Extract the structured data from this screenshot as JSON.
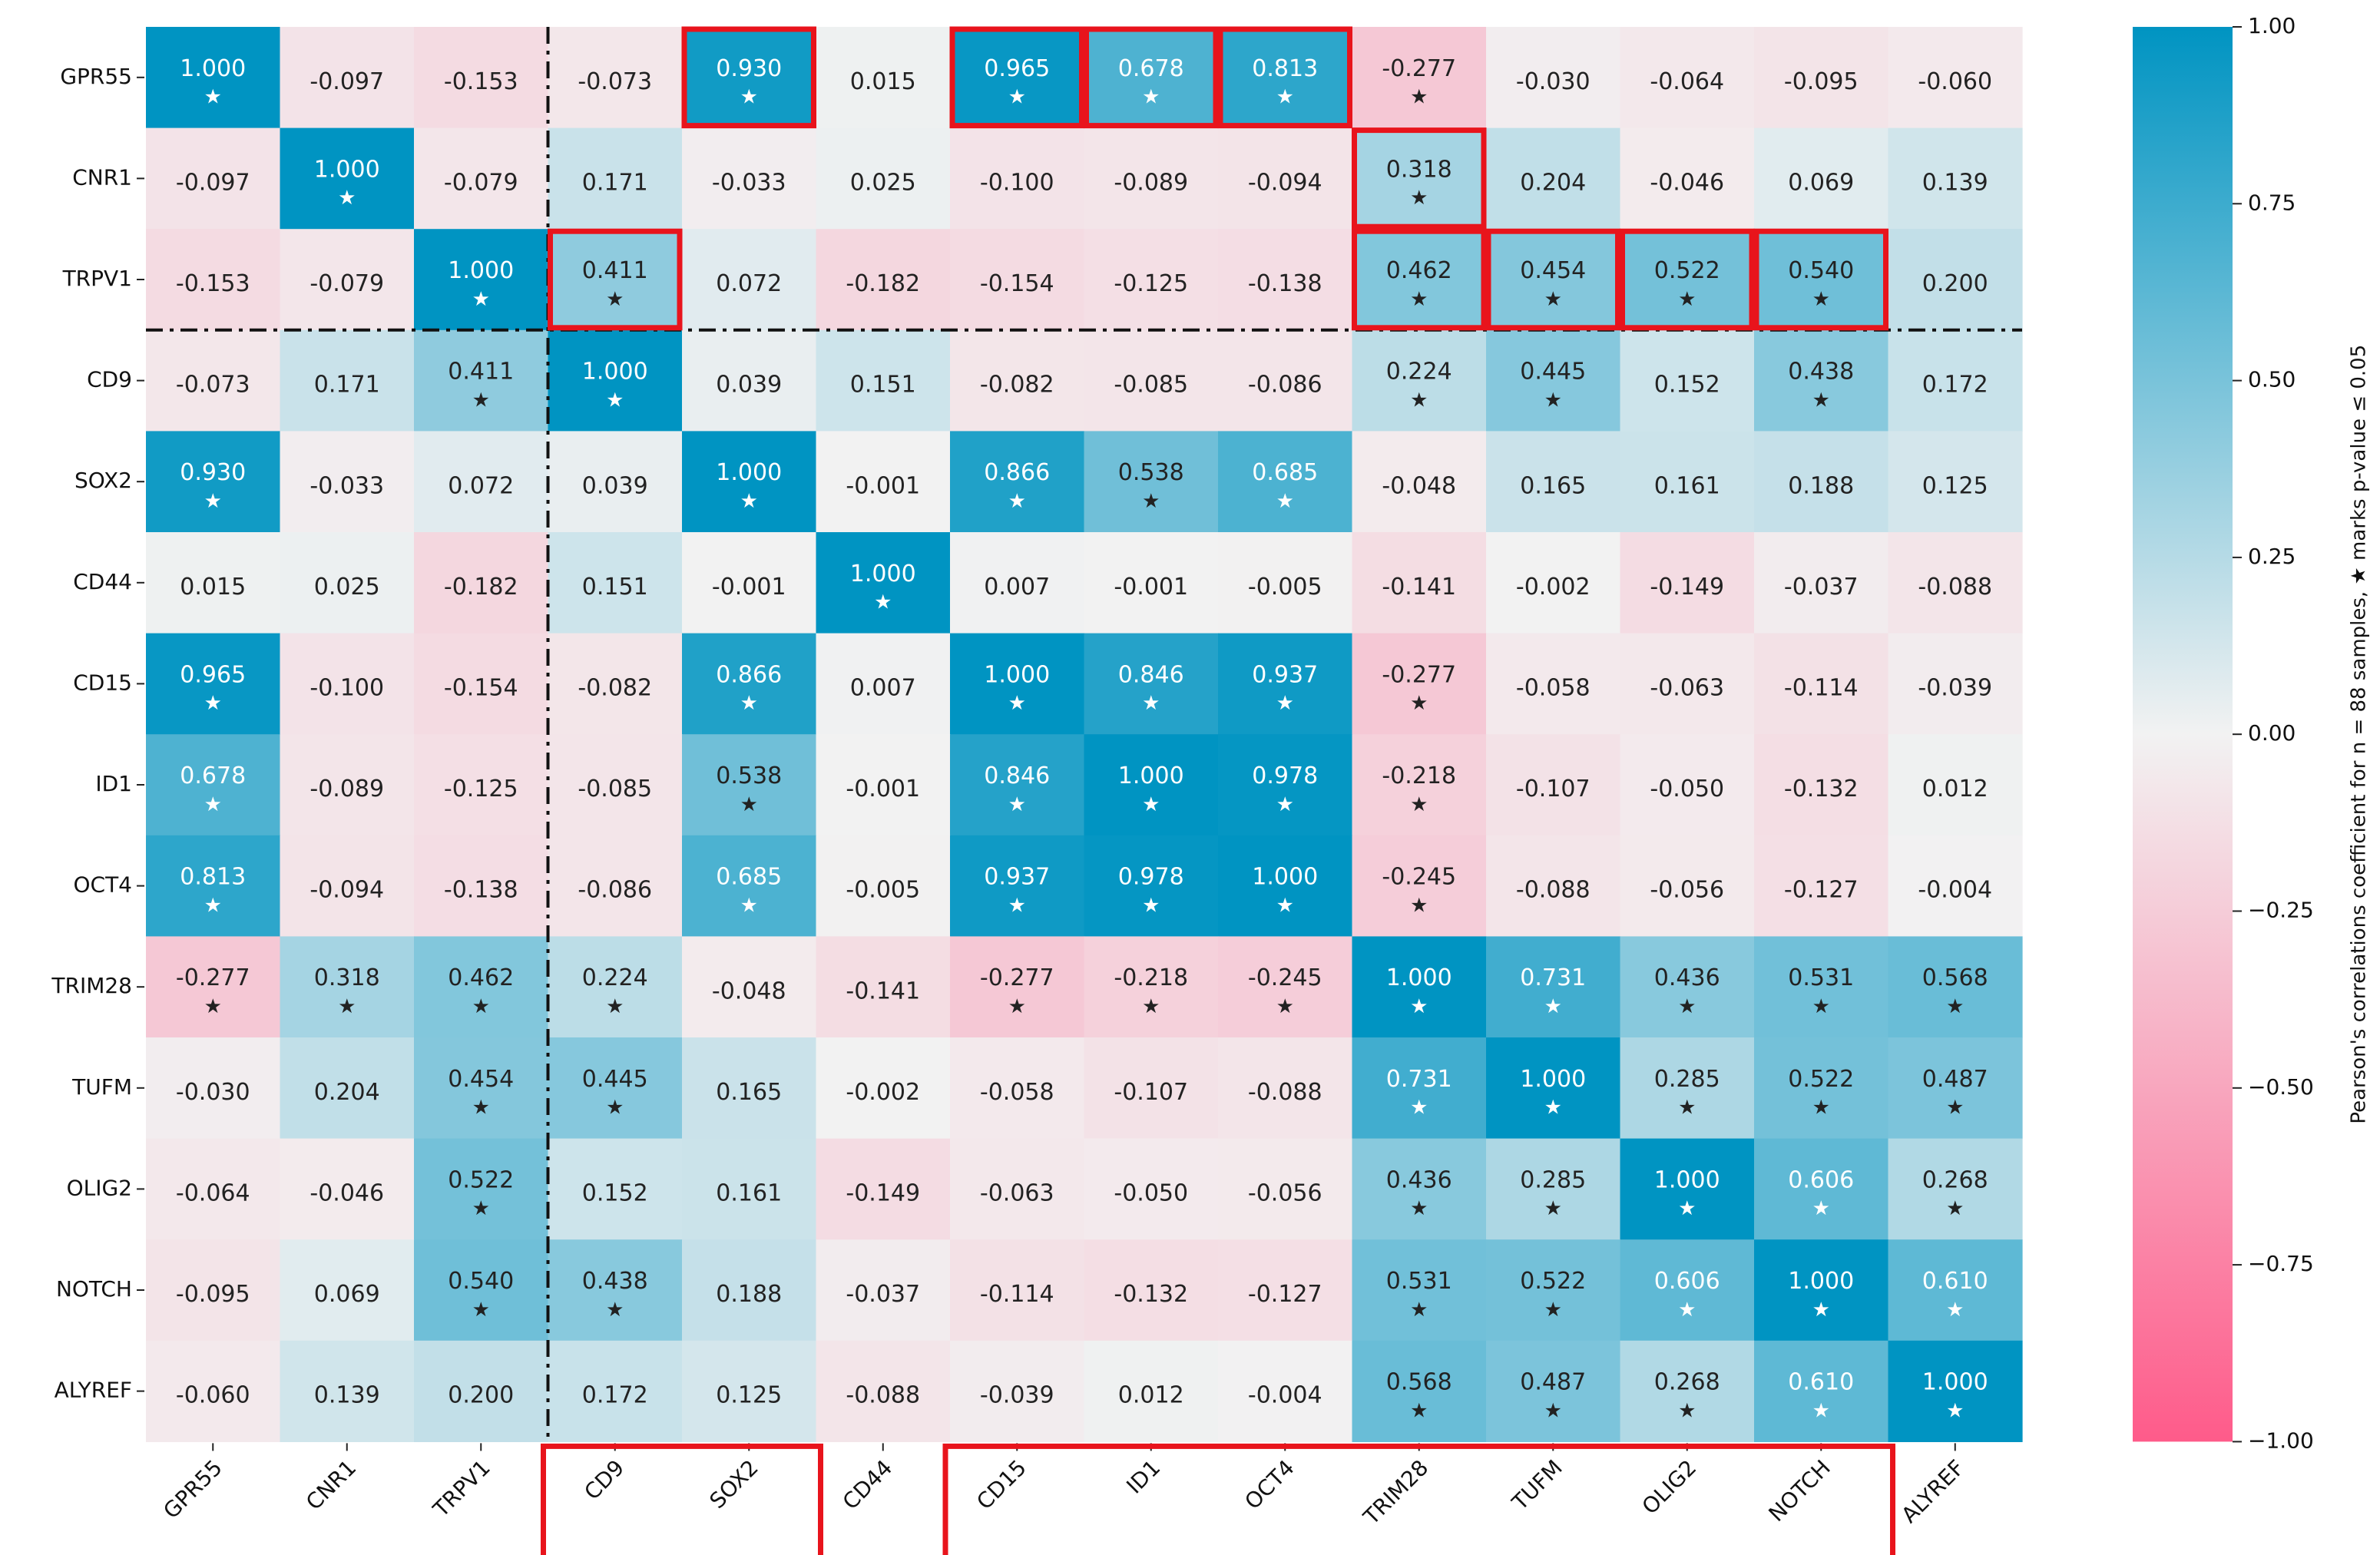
{
  "chart_data": {
    "type": "heatmap",
    "title": "",
    "labels": [
      "GPR55",
      "CNR1",
      "TRPV1",
      "CD9",
      "SOX2",
      "CD44",
      "CD15",
      "ID1",
      "OCT4",
      "TRIM28",
      "TUFM",
      "OLIG2",
      "NOTCH",
      "ALYREF"
    ],
    "values": [
      [
        1.0,
        -0.097,
        -0.153,
        -0.073,
        0.93,
        0.015,
        0.965,
        0.678,
        0.813,
        -0.277,
        -0.03,
        -0.064,
        -0.095,
        -0.06
      ],
      [
        -0.097,
        1.0,
        -0.079,
        0.171,
        -0.033,
        0.025,
        -0.1,
        -0.089,
        -0.094,
        0.318,
        0.204,
        -0.046,
        0.069,
        0.139
      ],
      [
        -0.153,
        -0.079,
        1.0,
        0.411,
        0.072,
        -0.182,
        -0.154,
        -0.125,
        -0.138,
        0.462,
        0.454,
        0.522,
        0.54,
        0.2
      ],
      [
        -0.073,
        0.171,
        0.411,
        1.0,
        0.039,
        0.151,
        -0.082,
        -0.085,
        -0.086,
        0.224,
        0.445,
        0.152,
        0.438,
        0.172
      ],
      [
        0.93,
        -0.033,
        0.072,
        0.039,
        1.0,
        -0.001,
        0.866,
        0.538,
        0.685,
        -0.048,
        0.165,
        0.161,
        0.188,
        0.125
      ],
      [
        0.015,
        0.025,
        -0.182,
        0.151,
        -0.001,
        1.0,
        0.007,
        -0.001,
        -0.005,
        -0.141,
        -0.002,
        -0.149,
        -0.037,
        -0.088
      ],
      [
        0.965,
        -0.1,
        -0.154,
        -0.082,
        0.866,
        0.007,
        1.0,
        0.846,
        0.937,
        -0.277,
        -0.058,
        -0.063,
        -0.114,
        -0.039
      ],
      [
        0.678,
        -0.089,
        -0.125,
        -0.085,
        0.538,
        -0.001,
        0.846,
        1.0,
        0.978,
        -0.218,
        -0.107,
        -0.05,
        -0.132,
        0.012
      ],
      [
        0.813,
        -0.094,
        -0.138,
        -0.086,
        0.685,
        -0.005,
        0.937,
        0.978,
        1.0,
        -0.245,
        -0.088,
        -0.056,
        -0.127,
        -0.004
      ],
      [
        -0.277,
        0.318,
        0.462,
        0.224,
        -0.048,
        -0.141,
        -0.277,
        -0.218,
        -0.245,
        1.0,
        0.731,
        0.436,
        0.531,
        0.568
      ],
      [
        -0.03,
        0.204,
        0.454,
        0.445,
        0.165,
        -0.002,
        -0.058,
        -0.107,
        -0.088,
        0.731,
        1.0,
        0.285,
        0.522,
        0.487
      ],
      [
        -0.064,
        -0.046,
        0.522,
        0.152,
        0.161,
        -0.149,
        -0.063,
        -0.05,
        -0.056,
        0.436,
        0.285,
        1.0,
        0.606,
        0.268
      ],
      [
        -0.095,
        0.069,
        0.54,
        0.438,
        0.188,
        -0.037,
        -0.114,
        -0.132,
        -0.127,
        0.531,
        0.522,
        0.606,
        1.0,
        0.61
      ],
      [
        -0.06,
        0.139,
        0.2,
        0.172,
        0.125,
        -0.088,
        -0.039,
        0.012,
        -0.004,
        0.568,
        0.487,
        0.268,
        0.61,
        1.0
      ]
    ],
    "significant": [
      [
        1,
        0,
        0,
        0,
        1,
        0,
        1,
        1,
        1,
        1,
        0,
        0,
        0,
        0
      ],
      [
        0,
        1,
        0,
        0,
        0,
        0,
        0,
        0,
        0,
        1,
        0,
        0,
        0,
        0
      ],
      [
        0,
        0,
        1,
        1,
        0,
        0,
        0,
        0,
        0,
        1,
        1,
        1,
        1,
        0
      ],
      [
        0,
        0,
        1,
        1,
        0,
        0,
        0,
        0,
        0,
        1,
        1,
        0,
        1,
        0
      ],
      [
        1,
        0,
        0,
        0,
        1,
        0,
        1,
        1,
        1,
        0,
        0,
        0,
        0,
        0
      ],
      [
        0,
        0,
        0,
        0,
        0,
        1,
        0,
        0,
        0,
        0,
        0,
        0,
        0,
        0
      ],
      [
        1,
        0,
        0,
        0,
        1,
        0,
        1,
        1,
        1,
        1,
        0,
        0,
        0,
        0
      ],
      [
        1,
        0,
        0,
        0,
        1,
        0,
        1,
        1,
        1,
        1,
        0,
        0,
        0,
        0
      ],
      [
        1,
        0,
        0,
        0,
        1,
        0,
        1,
        1,
        1,
        1,
        0,
        0,
        0,
        0
      ],
      [
        1,
        1,
        1,
        1,
        0,
        0,
        1,
        1,
        1,
        1,
        1,
        1,
        1,
        1
      ],
      [
        0,
        0,
        1,
        1,
        0,
        0,
        0,
        0,
        0,
        1,
        1,
        1,
        1,
        1
      ],
      [
        0,
        0,
        1,
        0,
        0,
        0,
        0,
        0,
        0,
        1,
        1,
        1,
        1,
        1
      ],
      [
        0,
        0,
        1,
        1,
        0,
        0,
        0,
        0,
        0,
        1,
        1,
        1,
        1,
        1
      ],
      [
        0,
        0,
        0,
        0,
        0,
        0,
        0,
        0,
        0,
        1,
        1,
        1,
        1,
        1
      ]
    ],
    "star_symbol": "★",
    "colorbar": {
      "min": -1.0,
      "max": 1.0,
      "ticks": [
        "1.00",
        "0.75",
        "0.50",
        "0.25",
        "0.00",
        "−0.25",
        "−0.50",
        "−0.75",
        "−1.00"
      ],
      "label": "Pearson's correlations coefficient for n = 88 samples, ★ marks p-value ≤ 0.05",
      "color_neg": "#fe5b8a",
      "color_mid": "#f2f2f2",
      "color_pos": "#0094c2"
    },
    "highlight_cells": [
      [
        0,
        4
      ],
      [
        0,
        6
      ],
      [
        0,
        7
      ],
      [
        0,
        8
      ],
      [
        1,
        9
      ],
      [
        2,
        3
      ],
      [
        2,
        9
      ],
      [
        2,
        10
      ],
      [
        2,
        11
      ],
      [
        2,
        12
      ]
    ],
    "highlight_xlabel_groups": [
      [
        3,
        4
      ],
      [
        6,
        12
      ]
    ],
    "divider_after_row": 2,
    "divider_after_col": 2,
    "highlight_color": "#e8141c",
    "grid": false
  }
}
